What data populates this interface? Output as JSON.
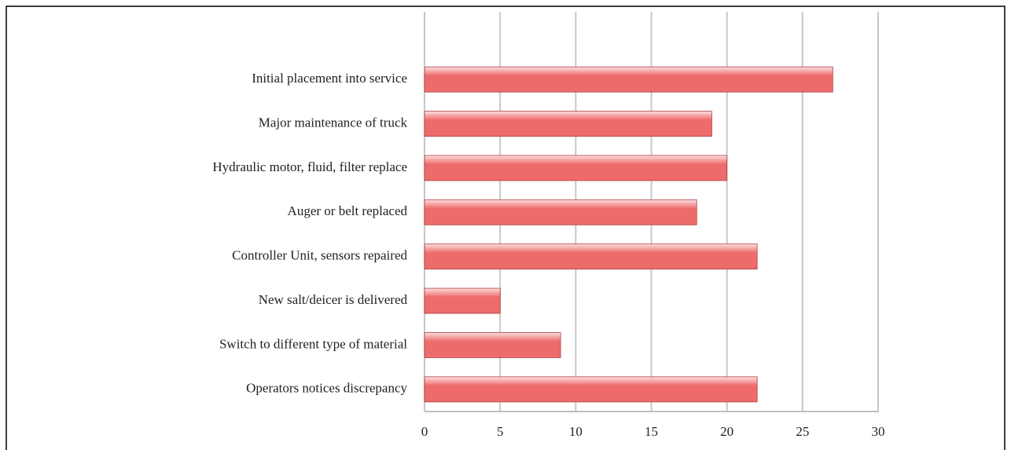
{
  "chart_data": {
    "type": "bar",
    "orientation": "horizontal",
    "categories": [
      "Initial placement into service",
      "Major maintenance of truck",
      "Hydraulic motor, fluid, filter replace",
      "Auger or belt replaced",
      "Controller Unit, sensors repaired",
      "New salt/deicer is delivered",
      "Switch to different type of material",
      "Operators notices discrepancy"
    ],
    "values": [
      27,
      19,
      20,
      18,
      22,
      5,
      9,
      22
    ],
    "color": "#ee6b6b",
    "xlim": [
      0,
      30
    ],
    "xticks": [
      0,
      5,
      10,
      15,
      20,
      25,
      30
    ],
    "grid": true
  }
}
